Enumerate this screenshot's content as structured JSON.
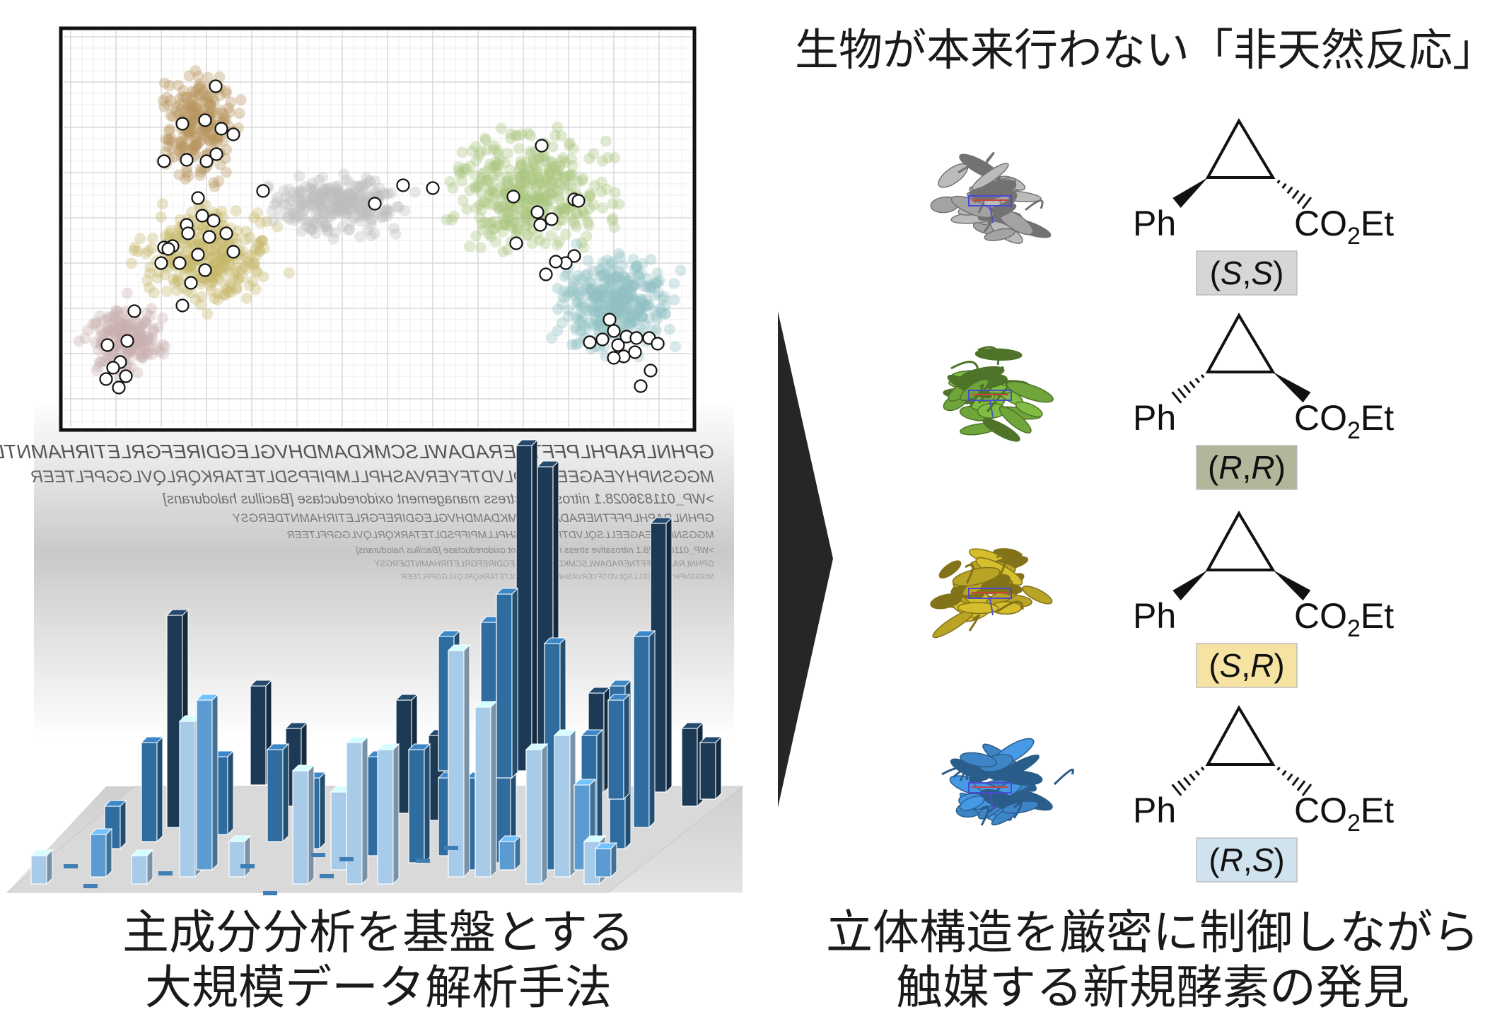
{
  "title": "生物が本来行わない「非天然反応」",
  "left_caption": [
    "主成分分析を基盤とする",
    "大規模データ解析手法"
  ],
  "right_caption": [
    "立体構造を厳密に制御しながら",
    "触媒する新規酵素の発見"
  ],
  "sequence_lines": [
    "GPHNLRAPHLPFFTNERADAWLSCMKDAMDHVGLEGDIREFGRLETIRHAMNTDERGSY",
    "MGGSNPHYEAGEELLSQLVDTFYERVASHPLLMPIFPSDLTETARKQRLQVLGGPFLTEER",
    ">WP_011836028.1 nitrosative stress management oxidoreductase [Bacillus halodurans]",
    "GPHNLRAPHLPFFTNERADAWLSCMKDAMDHVGLEGDIREFGRLETIRHAMNTDERGSY",
    "MGGSNPHYEAGEELLSQLVDTFYERVASHPLLMPIFPSDLTETARKQRLQVLGGPFLTEER",
    ">WP_011836028.1 nitrosative stress management oxidoreductase [Bacillus halodurans]",
    "GPHNLRAPHLPFFTNERADAWLSCMKDAMDHVGLEGDIREFGRLETIRHAMNTDERGSY",
    "MGGSNPHYEAGEELLSQLVDTFYERVASHPLLMPIFPSDLTETARKQRLQVLGGPFLTEER"
  ],
  "products": [
    {
      "left_group": "Ph",
      "right_group_main": "CO",
      "right_group_sub": "2",
      "right_group_tail": "Et",
      "stereo_prefix": "(",
      "stereo_a": "S",
      "stereo_sep": ",",
      "stereo_b": "S",
      "stereo_suffix": ")",
      "protein_color": "#a3a3a3",
      "label_bg": "#d6d6d6",
      "left_bond": "wedge",
      "right_bond": "hash"
    },
    {
      "left_group": "Ph",
      "right_group_main": "CO",
      "right_group_sub": "2",
      "right_group_tail": "Et",
      "stereo_prefix": "(",
      "stereo_a": "R",
      "stereo_sep": ",",
      "stereo_b": "R",
      "stereo_suffix": ")",
      "protein_color": "#6fa53a",
      "label_bg": "#b2b69a",
      "left_bond": "hash",
      "right_bond": "wedge"
    },
    {
      "left_group": "Ph",
      "right_group_main": "CO",
      "right_group_sub": "2",
      "right_group_tail": "Et",
      "stereo_prefix": "(",
      "stereo_a": "S",
      "stereo_sep": ",",
      "stereo_b": "R",
      "stereo_suffix": ")",
      "protein_color": "#b9a426",
      "label_bg": "#f6e3a2",
      "left_bond": "wedge",
      "right_bond": "wedge"
    },
    {
      "left_group": "Ph",
      "right_group_main": "CO",
      "right_group_sub": "2",
      "right_group_tail": "Et",
      "stereo_prefix": "(",
      "stereo_a": "R",
      "stereo_sep": ",",
      "stereo_b": "S",
      "stereo_suffix": ")",
      "protein_color": "#3d85c6",
      "label_bg": "#cfe2ee",
      "left_bond": "hash",
      "right_bond": "hash"
    }
  ],
  "cluster_colors": [
    "#b8955f",
    "#c6b76a",
    "#bcbcbc",
    "#a9c77e",
    "#8fc0c4",
    "#c9aeae"
  ],
  "bar_colors": [
    "#1c3a56",
    "#2f6c9f",
    "#5b9bd2",
    "#a8cbea"
  ],
  "arrow_color": "#262626"
}
